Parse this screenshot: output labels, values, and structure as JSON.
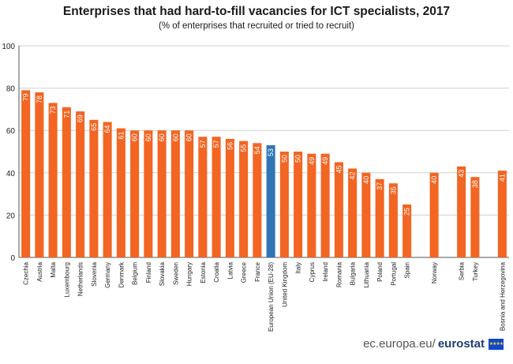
{
  "title": "Enterprises that had hard-to-fill vacancies for ICT specialists, 2017",
  "subtitle": "(% of enterprises that recruited or tried to recruit)",
  "footer": {
    "site": "ec.europa.eu/",
    "brand": "eurostat",
    "flag_icon": "eu-flag-icon"
  },
  "colors": {
    "bar": "#f26522",
    "highlight": "#2e75b6",
    "grid": "#d0d0d0",
    "axis": "#555555",
    "label": "#ffffff"
  },
  "chart_data": {
    "type": "bar",
    "title": "Enterprises that had hard-to-fill vacancies for ICT specialists, 2017",
    "subtitle": "(% of enterprises that recruited or tried to recruit)",
    "xlabel": "",
    "ylabel": "",
    "ylim": [
      0,
      100
    ],
    "yticks": [
      0,
      20,
      40,
      60,
      80,
      100
    ],
    "grid": true,
    "categories": [
      "Czechia",
      "Austria",
      "Malta",
      "Luxembourg",
      "Netherlands",
      "Slovenia",
      "Germany",
      "Denmark",
      "Belgium",
      "Finland",
      "Slovakia",
      "Sweden",
      "Hungary",
      "Estonia",
      "Croatia",
      "Latvia",
      "Greece",
      "France",
      "European Union (EU-28)",
      "United Kingdom",
      "Italy",
      "Cyprus",
      "Ireland",
      "Romania",
      "Bulgaria",
      "Lithuania",
      "Poland",
      "Portugal",
      "Spain",
      "",
      "Norway",
      "",
      "Serbia",
      "Turkey",
      "",
      "Bosnia and Herzegovina"
    ],
    "values": [
      79,
      78,
      73,
      71,
      69,
      65,
      64,
      61,
      60,
      60,
      60,
      60,
      60,
      57,
      57,
      56,
      55,
      54,
      53,
      50,
      50,
      49,
      49,
      45,
      42,
      40,
      37,
      35,
      25,
      null,
      40,
      null,
      43,
      38,
      null,
      41
    ],
    "highlight": [
      "European Union (EU-28)"
    ]
  }
}
